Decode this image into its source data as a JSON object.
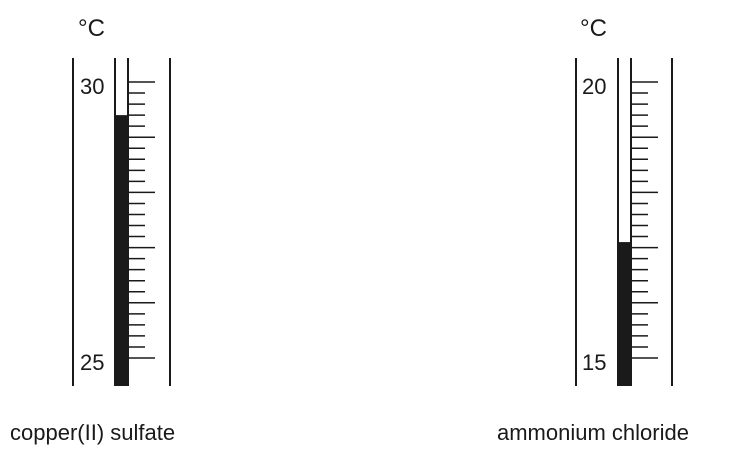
{
  "thermometers": [
    {
      "unit": "°C",
      "scale_top": 30,
      "scale_bottom": 25,
      "top_label": "30",
      "bottom_label": "25",
      "reading": 29.4,
      "caption": "copper(II) sulfate"
    },
    {
      "unit": "°C",
      "scale_top": 20,
      "scale_bottom": 15,
      "top_label": "20",
      "bottom_label": "15",
      "reading": 17.1,
      "caption": "ammonium chloride"
    }
  ],
  "colors": {
    "ink": "#1a1a1a",
    "liquid": "#1a1a1a",
    "background": "#ffffff"
  }
}
